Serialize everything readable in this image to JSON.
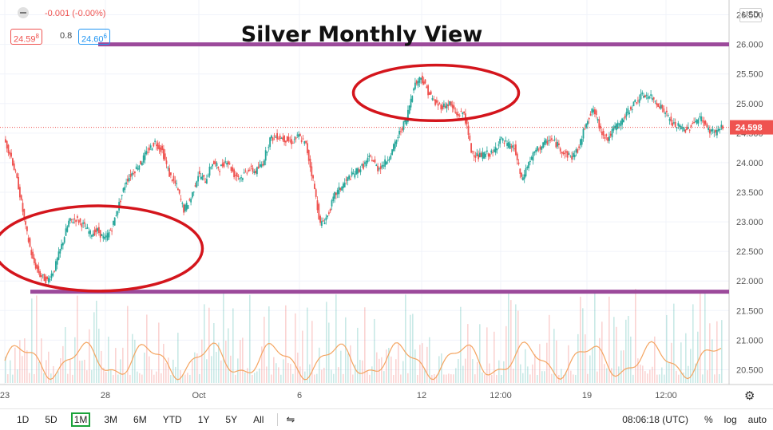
{
  "hud": {
    "change_text": "-0.001 (-0.00%)",
    "bid_main": "24.59",
    "bid_small": "8",
    "spread": "0.8",
    "ask_main": "24.60",
    "ask_small": "6"
  },
  "currency_label": "USD",
  "chart_data": {
    "type": "line",
    "title": "Silver Monthly View",
    "xlabel": "",
    "ylabel": "",
    "ylim": [
      20.25,
      26.75
    ],
    "y_ticks": [
      "26.500",
      "26.000",
      "25.500",
      "25.000",
      "24.500",
      "24.000",
      "23.500",
      "23.000",
      "22.500",
      "22.000",
      "21.500",
      "21.000",
      "20.500"
    ],
    "y_tick_values": [
      26.5,
      26.0,
      25.5,
      25.0,
      24.5,
      24.0,
      23.5,
      23.0,
      22.5,
      22.0,
      21.5,
      21.0,
      20.5
    ],
    "x_ticks": [
      "23",
      "28",
      "Oct",
      "6",
      "12",
      "12:00",
      "19",
      "12:00"
    ],
    "last_price": "24.598",
    "last_value": 24.598,
    "x_index_range": [
      0,
      100
    ],
    "x_tick_index": [
      0,
      14,
      27,
      41,
      58,
      69,
      81,
      92
    ],
    "series": [
      {
        "values": [
          {
            "x": 0,
            "y": 24.4
          },
          {
            "x": 1,
            "y": 24.1
          },
          {
            "x": 2,
            "y": 23.6
          },
          {
            "x": 3,
            "y": 22.9
          },
          {
            "x": 4,
            "y": 22.35
          },
          {
            "x": 5,
            "y": 22.1
          },
          {
            "x": 6,
            "y": 22.0
          },
          {
            "x": 7,
            "y": 22.2
          },
          {
            "x": 8,
            "y": 22.6
          },
          {
            "x": 9,
            "y": 23.0
          },
          {
            "x": 10,
            "y": 23.05
          },
          {
            "x": 11,
            "y": 22.95
          },
          {
            "x": 12,
            "y": 22.8
          },
          {
            "x": 13,
            "y": 22.85
          },
          {
            "x": 14,
            "y": 22.7
          },
          {
            "x": 15,
            "y": 22.9
          },
          {
            "x": 16,
            "y": 23.3
          },
          {
            "x": 17,
            "y": 23.7
          },
          {
            "x": 18,
            "y": 23.85
          },
          {
            "x": 19,
            "y": 24.0
          },
          {
            "x": 20,
            "y": 24.2
          },
          {
            "x": 21,
            "y": 24.35
          },
          {
            "x": 22,
            "y": 24.2
          },
          {
            "x": 23,
            "y": 23.8
          },
          {
            "x": 24,
            "y": 23.6
          },
          {
            "x": 25,
            "y": 23.2
          },
          {
            "x": 26,
            "y": 23.4
          },
          {
            "x": 27,
            "y": 23.8
          },
          {
            "x": 28,
            "y": 23.7
          },
          {
            "x": 29,
            "y": 24.0
          },
          {
            "x": 30,
            "y": 23.9
          },
          {
            "x": 31,
            "y": 24.05
          },
          {
            "x": 32,
            "y": 23.8
          },
          {
            "x": 33,
            "y": 23.75
          },
          {
            "x": 34,
            "y": 23.9
          },
          {
            "x": 35,
            "y": 23.85
          },
          {
            "x": 36,
            "y": 24.0
          },
          {
            "x": 37,
            "y": 24.4
          },
          {
            "x": 38,
            "y": 24.45
          },
          {
            "x": 39,
            "y": 24.4
          },
          {
            "x": 40,
            "y": 24.35
          },
          {
            "x": 41,
            "y": 24.45
          },
          {
            "x": 42,
            "y": 24.3
          },
          {
            "x": 43,
            "y": 23.7
          },
          {
            "x": 44,
            "y": 22.95
          },
          {
            "x": 45,
            "y": 23.1
          },
          {
            "x": 46,
            "y": 23.45
          },
          {
            "x": 47,
            "y": 23.6
          },
          {
            "x": 48,
            "y": 23.75
          },
          {
            "x": 49,
            "y": 23.85
          },
          {
            "x": 50,
            "y": 23.95
          },
          {
            "x": 51,
            "y": 24.1
          },
          {
            "x": 52,
            "y": 23.9
          },
          {
            "x": 53,
            "y": 24.0
          },
          {
            "x": 54,
            "y": 24.2
          },
          {
            "x": 55,
            "y": 24.5
          },
          {
            "x": 56,
            "y": 24.75
          },
          {
            "x": 57,
            "y": 25.3
          },
          {
            "x": 58,
            "y": 25.45
          },
          {
            "x": 59,
            "y": 25.2
          },
          {
            "x": 60,
            "y": 25.0
          },
          {
            "x": 61,
            "y": 24.95
          },
          {
            "x": 62,
            "y": 25.0
          },
          {
            "x": 63,
            "y": 24.8
          },
          {
            "x": 64,
            "y": 24.85
          },
          {
            "x": 65,
            "y": 24.2
          },
          {
            "x": 66,
            "y": 24.1
          },
          {
            "x": 67,
            "y": 24.15
          },
          {
            "x": 68,
            "y": 24.15
          },
          {
            "x": 69,
            "y": 24.4
          },
          {
            "x": 70,
            "y": 24.3
          },
          {
            "x": 71,
            "y": 24.25
          },
          {
            "x": 72,
            "y": 23.7
          },
          {
            "x": 73,
            "y": 24.0
          },
          {
            "x": 74,
            "y": 24.2
          },
          {
            "x": 75,
            "y": 24.3
          },
          {
            "x": 76,
            "y": 24.4
          },
          {
            "x": 77,
            "y": 24.3
          },
          {
            "x": 78,
            "y": 24.15
          },
          {
            "x": 79,
            "y": 24.1
          },
          {
            "x": 80,
            "y": 24.25
          },
          {
            "x": 81,
            "y": 24.7
          },
          {
            "x": 82,
            "y": 24.9
          },
          {
            "x": 83,
            "y": 24.55
          },
          {
            "x": 84,
            "y": 24.4
          },
          {
            "x": 85,
            "y": 24.6
          },
          {
            "x": 86,
            "y": 24.7
          },
          {
            "x": 87,
            "y": 24.9
          },
          {
            "x": 88,
            "y": 25.05
          },
          {
            "x": 89,
            "y": 25.15
          },
          {
            "x": 90,
            "y": 25.1
          },
          {
            "x": 91,
            "y": 25.0
          },
          {
            "x": 92,
            "y": 24.85
          },
          {
            "x": 93,
            "y": 24.65
          },
          {
            "x": 94,
            "y": 24.6
          },
          {
            "x": 95,
            "y": 24.55
          },
          {
            "x": 96,
            "y": 24.7
          },
          {
            "x": 97,
            "y": 24.75
          },
          {
            "x": 98,
            "y": 24.55
          },
          {
            "x": 99,
            "y": 24.52
          },
          {
            "x": 100,
            "y": 24.6
          }
        ]
      }
    ],
    "horizontal_levels": [
      26.0,
      21.82
    ],
    "level_color": "#9c4a9b",
    "annotation_ellipses": [
      {
        "x_center": 13,
        "y_center": 22.55,
        "x_radius": 14.5,
        "y_radius": 0.72
      },
      {
        "x_center": 60,
        "y_center": 25.18,
        "x_radius": 11.5,
        "y_radius": 0.47
      }
    ],
    "ellipse_color": "#d4151c",
    "up_color": "#26a69a",
    "down_color": "#ef5350",
    "volume_ma_color": "#f4a460",
    "grid": true
  },
  "bottom_bar": {
    "timeframes": [
      "1D",
      "5D",
      "1M",
      "3M",
      "6M",
      "YTD",
      "1Y",
      "5Y",
      "All"
    ],
    "active_timeframe": "1M",
    "clock": "08:06:18 (UTC)",
    "percent_label": "%",
    "log_label": "log",
    "auto_label": "auto"
  },
  "colors": {
    "accent_green": "#1aa33a",
    "price_red": "#ef5350",
    "ask_blue": "#2196f3"
  }
}
